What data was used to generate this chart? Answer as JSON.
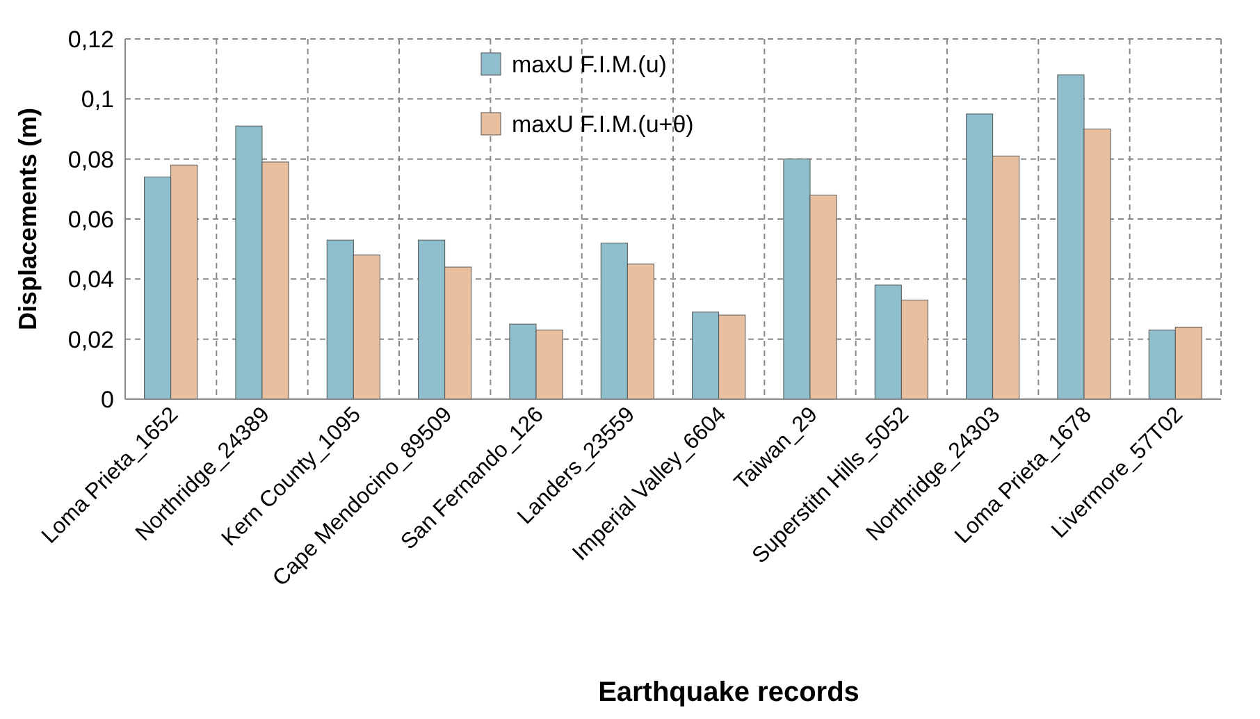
{
  "chart_data": {
    "type": "bar",
    "xlabel": "Earthquake records",
    "ylabel": "Displacements (m)",
    "categories": [
      "Loma Prieta_1652",
      "Northridge_24389",
      "Kern County_1095",
      "Cape Mendocino_89509",
      "San Fernando_126",
      "Landers_23559",
      "Imperial Valley_6604",
      "Taiwan_29",
      "Superstitn Hills_5052",
      "Northridge_24303",
      "Loma Prieta_1678",
      "Livermore_57T02"
    ],
    "series": [
      {
        "name": "maxU F.I.M.(u)",
        "color": "#8fbfcc",
        "values": [
          0.074,
          0.091,
          0.053,
          0.053,
          0.025,
          0.052,
          0.029,
          0.08,
          0.038,
          0.095,
          0.108,
          0.023
        ]
      },
      {
        "name": "maxU F.I.M.(u+θ)",
        "color": "#e8c0a0",
        "values": [
          0.078,
          0.079,
          0.048,
          0.044,
          0.023,
          0.045,
          0.028,
          0.068,
          0.033,
          0.081,
          0.09,
          0.024
        ]
      }
    ],
    "ylim": [
      0,
      0.12
    ],
    "yticks": [
      {
        "value": 0,
        "label": "0"
      },
      {
        "value": 0.02,
        "label": "0,02"
      },
      {
        "value": 0.04,
        "label": "0,04"
      },
      {
        "value": 0.06,
        "label": "0,06"
      },
      {
        "value": 0.08,
        "label": "0,08"
      },
      {
        "value": 0.1,
        "label": "0,1"
      },
      {
        "value": 0.12,
        "label": "0,12"
      }
    ],
    "grid": true,
    "legend": "top"
  }
}
